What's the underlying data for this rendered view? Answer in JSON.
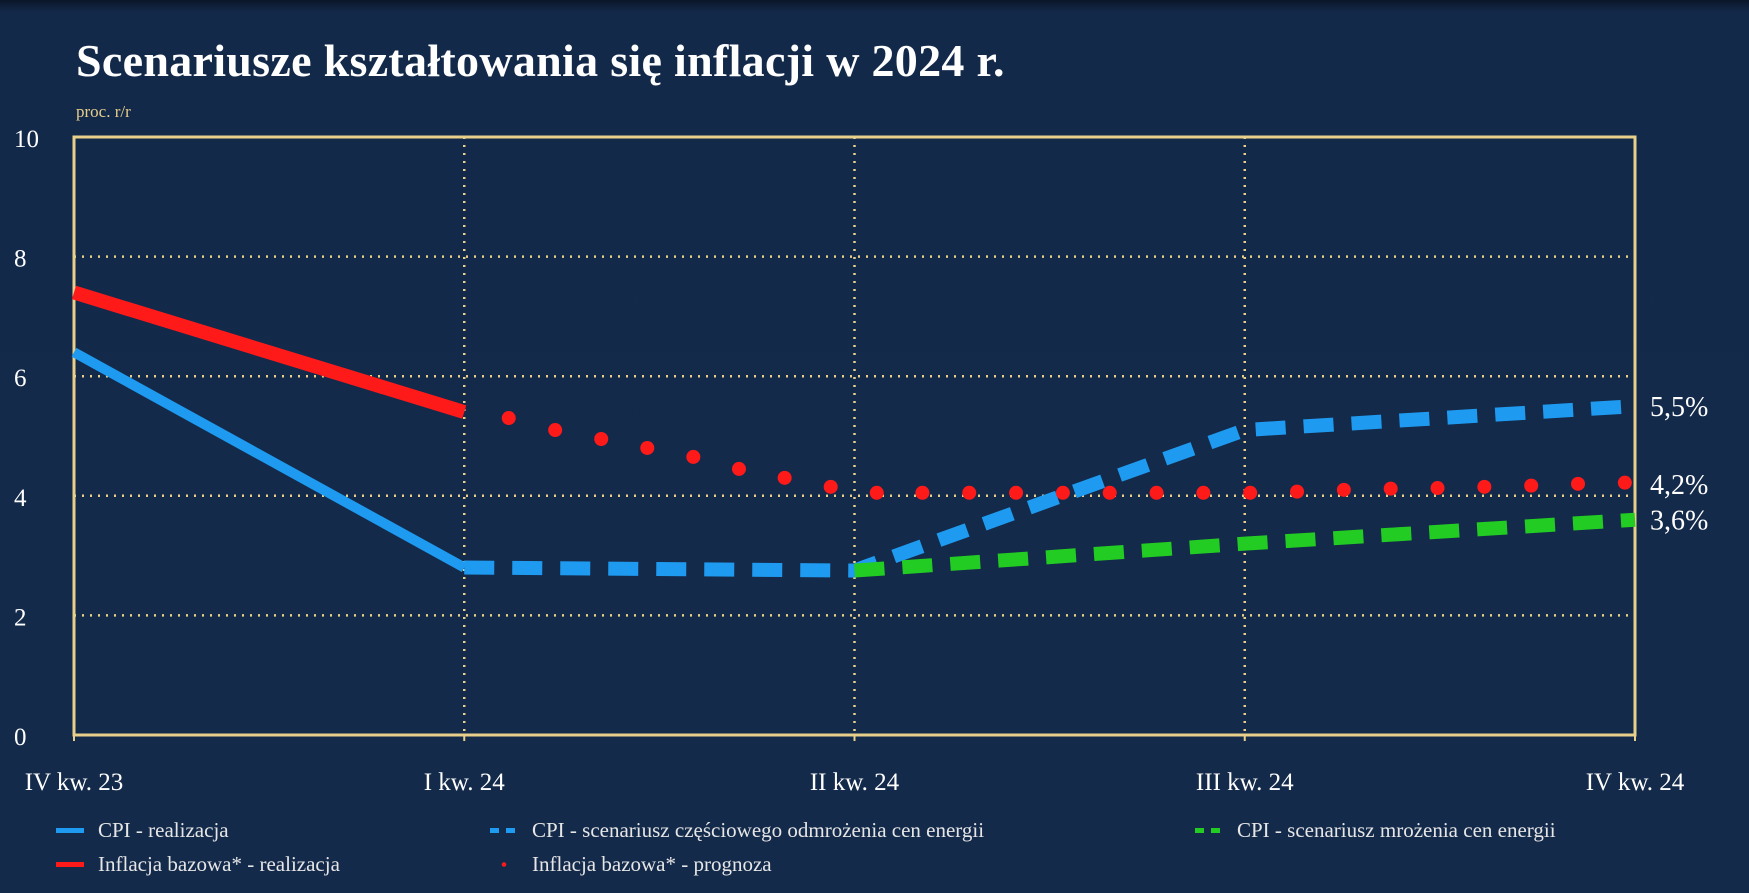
{
  "chart_data": {
    "type": "line",
    "title": "Scenariusze kształtowania się inflacji w 2024 r.",
    "ylabel": "proc. r/r",
    "ylim": [
      0,
      10
    ],
    "yticks": [
      0,
      2,
      4,
      6,
      8,
      10
    ],
    "categories": [
      "IV kw. 23",
      "I kw. 24",
      "II kw. 24",
      "III kw. 24",
      "IV kw. 24"
    ],
    "grid": true,
    "legend_position": "bottom",
    "series": [
      {
        "name": "CPI - realizacja",
        "style": "solid",
        "color": "#1e9bf0",
        "x": [
          0,
          1
        ],
        "values": [
          6.4,
          2.8
        ]
      },
      {
        "name": "Inflacja bazowa* - realizacja",
        "style": "solid",
        "color": "#ff1a1a",
        "x": [
          0,
          1
        ],
        "values": [
          7.4,
          5.4
        ]
      },
      {
        "name": "CPI - scenariusz częściowego odmrożenia cen energii",
        "style": "dashed",
        "color": "#1e9bf0",
        "x": [
          1,
          2,
          3,
          4
        ],
        "values": [
          2.8,
          2.75,
          5.1,
          5.5
        ]
      },
      {
        "name": "CPI - scenariusz mrożenia cen energii",
        "style": "dashed",
        "color": "#22cc22",
        "x": [
          2,
          3,
          4
        ],
        "values": [
          2.75,
          3.2,
          3.6
        ]
      },
      {
        "name": "Inflacja bazowa* - prognoza",
        "style": "dotted",
        "color": "#ff1a1a",
        "x": [
          1.114,
          1.233,
          1.351,
          1.469,
          1.587,
          1.704,
          1.821,
          1.939,
          2.057,
          2.174,
          2.294,
          2.414,
          2.534,
          2.654,
          2.774,
          2.894,
          3.014,
          3.134,
          3.254,
          3.374,
          3.494,
          3.614,
          3.734,
          3.854,
          3.974
        ],
        "values": [
          5.3,
          5.1,
          4.95,
          4.8,
          4.65,
          4.45,
          4.3,
          4.15,
          4.05,
          4.05,
          4.05,
          4.05,
          4.05,
          4.05,
          4.05,
          4.05,
          4.05,
          4.07,
          4.1,
          4.12,
          4.13,
          4.15,
          4.17,
          4.2,
          4.22
        ]
      }
    ],
    "end_labels": [
      "5,5%",
      "4,2%",
      "3,6%"
    ],
    "end_label_values": [
      5.5,
      4.2,
      3.6
    ]
  }
}
